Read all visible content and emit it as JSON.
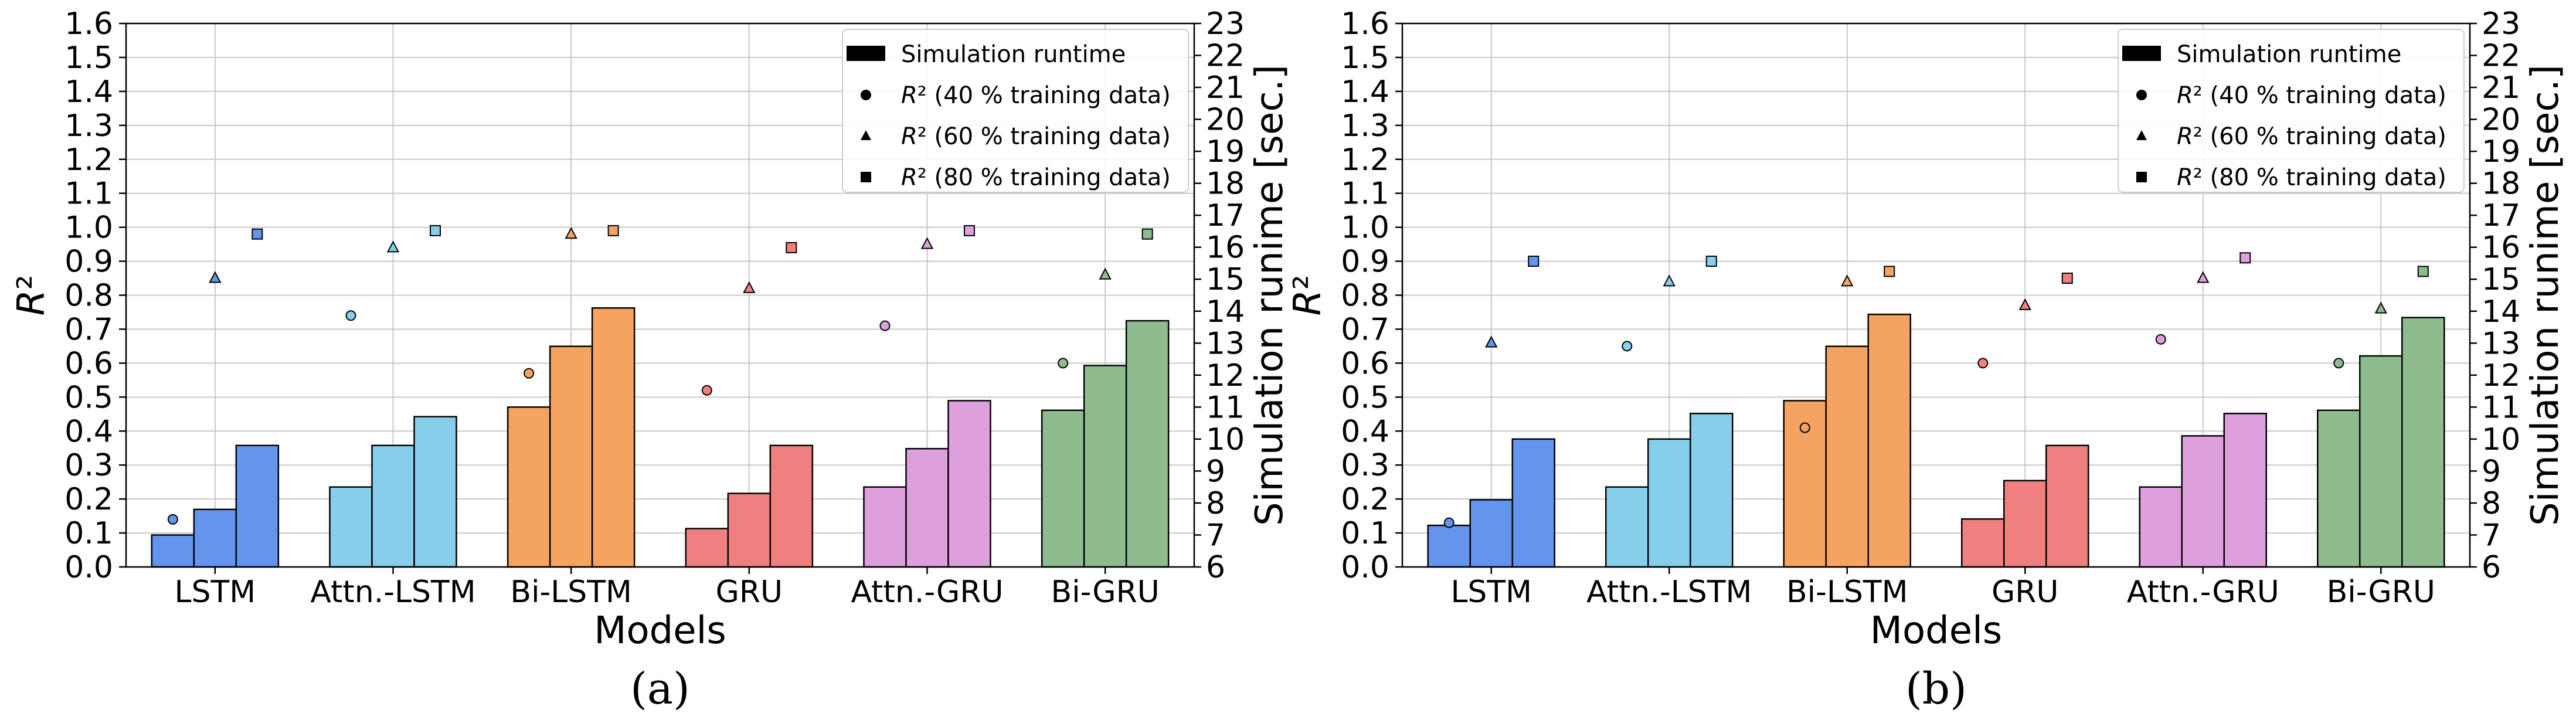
{
  "chart_data": [
    {
      "type": "bar",
      "panel_label": "(a)",
      "categories": [
        "LSTM",
        "Attn.-LSTM",
        "Bi-LSTM",
        "GRU",
        "Attn.-GRU",
        "Bi-GRU"
      ],
      "xlabel": "Models",
      "ylabel": "R²",
      "ylabel_right": "Simulation runime [sec.]",
      "ylim": [
        0,
        1.6
      ],
      "ylim_right": [
        6,
        23
      ],
      "grid": true,
      "legend_position": "top-right",
      "legend": [
        {
          "marker": "bar",
          "label": "Simulation runtime"
        },
        {
          "marker": "circle",
          "label": "R² (40 % training data)"
        },
        {
          "marker": "triangle",
          "label": "R² (60 % training data)"
        },
        {
          "marker": "square",
          "label": "R² (80 % training data)"
        }
      ],
      "category_colors": [
        "#6495ED",
        "#87CEEB",
        "#F4A460",
        "#F08080",
        "#DDA0DD",
        "#8FBC8F"
      ],
      "series": [
        {
          "name": "Simulation runtime (40 % training data)",
          "axis": "right",
          "kind": "bar",
          "values": [
            7.0,
            8.5,
            11.0,
            7.2,
            8.5,
            10.9
          ]
        },
        {
          "name": "Simulation runtime (60 % training data)",
          "axis": "right",
          "kind": "bar",
          "values": [
            7.8,
            9.8,
            12.9,
            8.3,
            9.7,
            12.3
          ]
        },
        {
          "name": "Simulation runtime (80 % training data)",
          "axis": "right",
          "kind": "bar",
          "values": [
            9.8,
            10.7,
            14.1,
            9.8,
            11.2,
            13.7
          ]
        },
        {
          "name": "R² (40 % training data)",
          "axis": "left",
          "kind": "circle",
          "values": [
            0.14,
            0.74,
            0.57,
            0.52,
            0.71,
            0.6
          ]
        },
        {
          "name": "R² (60 % training data)",
          "axis": "left",
          "kind": "triangle",
          "values": [
            0.85,
            0.94,
            0.98,
            0.82,
            0.95,
            0.86
          ]
        },
        {
          "name": "R² (80 % training data)",
          "axis": "left",
          "kind": "square",
          "values": [
            0.98,
            0.99,
            0.99,
            0.94,
            0.99,
            0.98
          ]
        }
      ]
    },
    {
      "type": "bar",
      "panel_label": "(b)",
      "categories": [
        "LSTM",
        "Attn.-LSTM",
        "Bi-LSTM",
        "GRU",
        "Attn.-GRU",
        "Bi-GRU"
      ],
      "xlabel": "Models",
      "ylabel": "R²",
      "ylabel_right": "Simulation runime [sec.]",
      "ylim": [
        0,
        1.6
      ],
      "ylim_right": [
        6,
        23
      ],
      "grid": true,
      "legend_position": "top-right",
      "legend": [
        {
          "marker": "bar",
          "label": "Simulation runtime"
        },
        {
          "marker": "circle",
          "label": "R² (40 % training data)"
        },
        {
          "marker": "triangle",
          "label": "R² (60 % training data)"
        },
        {
          "marker": "square",
          "label": "R² (80 % training data)"
        }
      ],
      "category_colors": [
        "#6495ED",
        "#87CEEB",
        "#F4A460",
        "#F08080",
        "#DDA0DD",
        "#8FBC8F"
      ],
      "series": [
        {
          "name": "Simulation runtime (40 % training data)",
          "axis": "right",
          "kind": "bar",
          "values": [
            7.3,
            8.5,
            11.2,
            7.5,
            8.5,
            10.9
          ]
        },
        {
          "name": "Simulation runtime (60 % training data)",
          "axis": "right",
          "kind": "bar",
          "values": [
            8.1,
            10.0,
            12.9,
            8.7,
            10.1,
            12.6
          ]
        },
        {
          "name": "Simulation runtime (80 % training data)",
          "axis": "right",
          "kind": "bar",
          "values": [
            10.0,
            10.8,
            13.9,
            9.8,
            10.8,
            13.8
          ]
        },
        {
          "name": "R² (40 % training data)",
          "axis": "left",
          "kind": "circle",
          "values": [
            0.13,
            0.65,
            0.41,
            0.6,
            0.67,
            0.6
          ]
        },
        {
          "name": "R² (60 % training data)",
          "axis": "left",
          "kind": "triangle",
          "values": [
            0.66,
            0.84,
            0.84,
            0.77,
            0.85,
            0.76
          ]
        },
        {
          "name": "R² (80 % training data)",
          "axis": "left",
          "kind": "square",
          "values": [
            0.9,
            0.9,
            0.87,
            0.85,
            0.91,
            0.87
          ]
        }
      ]
    }
  ]
}
